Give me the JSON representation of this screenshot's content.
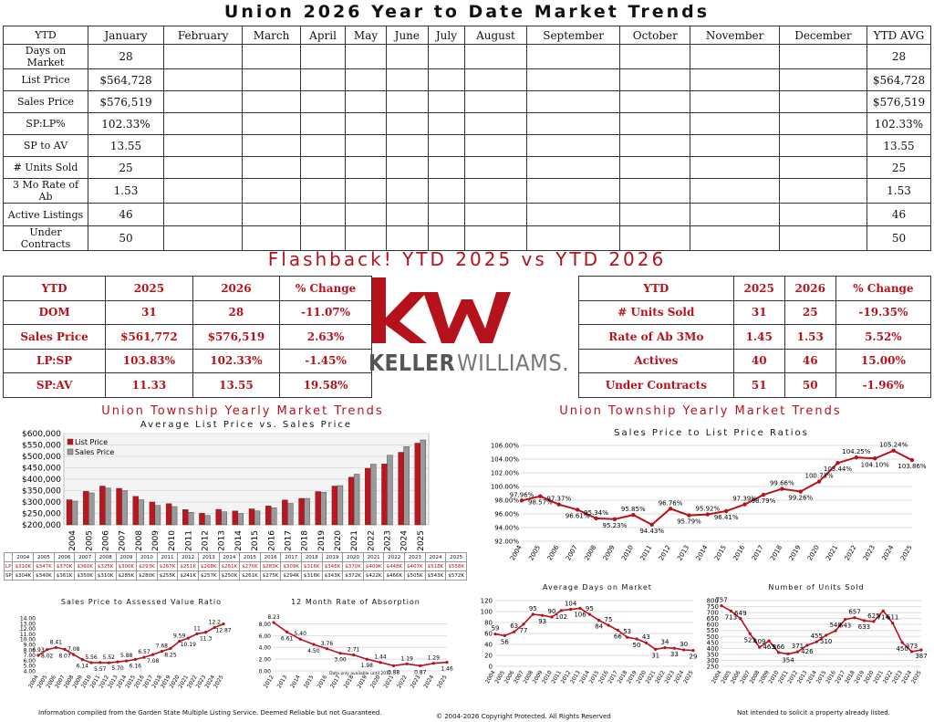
{
  "title": "Union 2026 Year to Date Market Trends",
  "ytd_table": {
    "headers": [
      "YTD",
      "January",
      "February",
      "March",
      "April",
      "May",
      "June",
      "July",
      "August",
      "September",
      "October",
      "November",
      "December",
      "YTD AVG"
    ],
    "rows": [
      {
        "label": "Days on Market",
        "january": "28",
        "ytd_avg": "28"
      },
      {
        "label": "List Price",
        "january": "$564,728",
        "ytd_avg": "$564,728"
      },
      {
        "label": "Sales Price",
        "january": "$576,519",
        "ytd_avg": "$576,519"
      },
      {
        "label": "SP:LP%",
        "january": "102.33%",
        "ytd_avg": "102.33%"
      },
      {
        "label": "SP to AV",
        "january": "13.55",
        "ytd_avg": "13.55"
      },
      {
        "label": "# Units Sold",
        "january": "25",
        "ytd_avg": "25"
      },
      {
        "label": "3 Mo Rate of Ab",
        "january": "1.53",
        "ytd_avg": "1.53"
      },
      {
        "label": "Active Listings",
        "january": "46",
        "ytd_avg": "46"
      },
      {
        "label": "Under Contracts",
        "january": "50",
        "ytd_avg": "50"
      }
    ]
  },
  "flashback_title": "Flashback!  YTD 2025 vs YTD 2026",
  "compare_left": {
    "headers": [
      "YTD",
      "2025",
      "2026",
      "% Change"
    ],
    "rows": [
      [
        "DOM",
        "31",
        "28",
        "-11.07%"
      ],
      [
        "Sales Price",
        "$561,772",
        "$576,519",
        "2.63%"
      ],
      [
        "LP:SP",
        "103.83%",
        "102.33%",
        "-1.45%"
      ],
      [
        "SP:AV",
        "11.33",
        "13.55",
        "19.58%"
      ]
    ]
  },
  "compare_right": {
    "headers": [
      "YTD",
      "2025",
      "2026",
      "% Change"
    ],
    "rows": [
      [
        "# Units Sold",
        "31",
        "25",
        "-19.35%"
      ],
      [
        "Rate of Ab 3Mo",
        "1.45",
        "1.53",
        "5.52%"
      ],
      [
        "Actives",
        "40",
        "46",
        "15.00%"
      ],
      [
        "Under Contracts",
        "51",
        "50",
        "-1.96%"
      ]
    ]
  },
  "logo": {
    "mark": "kw",
    "wordmark_bold": "KELLER",
    "wordmark_light": "WILLIAMS.",
    "color": "#b5121b"
  },
  "section_title_left": "Union Township Yearly Market Trends",
  "section_title_right": "Union Township Yearly Market Trends",
  "price_table": {
    "years": [
      "2004",
      "2005",
      "2006",
      "2007",
      "2008",
      "2009",
      "2010",
      "2011",
      "2012",
      "2013",
      "2014",
      "2015",
      "2016",
      "2017",
      "2018",
      "2019",
      "2020",
      "2021",
      "2022",
      "2023",
      "2024",
      "2025"
    ],
    "lp_label": "LP",
    "sp_label": "SP",
    "lp": [
      "$310K",
      "$347K",
      "$370K",
      "$360K",
      "$325K",
      "$300K",
      "$293K",
      "$267K",
      "$251K",
      "$268K",
      "$261K",
      "$270K",
      "$283K",
      "$309K",
      "$316K",
      "$346K",
      "$370K",
      "$409K",
      "$448K",
      "$467K",
      "$518K",
      "$558K"
    ],
    "sp": [
      "$304K",
      "$340K",
      "$361K",
      "$350K",
      "$310K",
      "$285K",
      "$280K",
      "$255K",
      "$241K",
      "$257K",
      "$250K",
      "$261K",
      "$275K",
      "$294K",
      "$316K",
      "$343K",
      "$372K",
      "$422K",
      "$466K",
      "$505K",
      "$543K",
      "$572K"
    ]
  },
  "footer": {
    "left": "Information compiled from the Garden State Multiple Listing Service.  Deemed Reliable but not Guaranteed.",
    "center": "© 2004-2026 Copyright Protected.  All Rights Reserved",
    "right": "Not intended to solicit a property already listed."
  },
  "chart_data": [
    {
      "id": "avg_price",
      "type": "bar",
      "title": "Average List Price vs. Sales Price",
      "categories": [
        "2004",
        "2005",
        "2006",
        "2007",
        "2008",
        "2009",
        "2010",
        "2011",
        "2012",
        "2013",
        "2014",
        "2015",
        "2016",
        "2017",
        "2018",
        "2019",
        "2020",
        "2021",
        "2022",
        "2023",
        "2024",
        "2025"
      ],
      "series": [
        {
          "name": "List Price",
          "color": "#c0141c",
          "values": [
            310000,
            347000,
            370000,
            360000,
            325000,
            300000,
            293000,
            267000,
            251000,
            268000,
            261000,
            270000,
            283000,
            309000,
            316000,
            346000,
            370000,
            409000,
            448000,
            467000,
            518000,
            558000
          ]
        },
        {
          "name": "Sales Price",
          "color": "#9a9a9a",
          "values": [
            304000,
            340000,
            361000,
            350000,
            310000,
            285000,
            280000,
            255000,
            241000,
            257000,
            250000,
            261000,
            275000,
            294000,
            316000,
            343000,
            372000,
            422000,
            466000,
            505000,
            543000,
            572000
          ]
        }
      ],
      "yticks": [
        "$200,000",
        "$250,000",
        "$300,000",
        "$350,000",
        "$400,000",
        "$450,000",
        "$500,000",
        "$550,000",
        "$600,000"
      ],
      "ylim": [
        200000,
        600000
      ],
      "legend": "top-left"
    },
    {
      "id": "sp_lp",
      "type": "line",
      "title": "Sales Price to List Price Ratios",
      "x": [
        "2004",
        "2005",
        "2006",
        "2007",
        "2008",
        "2009",
        "2010",
        "2011",
        "2012",
        "2013",
        "2014",
        "2015",
        "2016",
        "2017",
        "2018",
        "2019",
        "2020",
        "2021",
        "2022",
        "2023",
        "2024",
        "2025"
      ],
      "values": [
        97.96,
        98.57,
        97.37,
        96.61,
        95.34,
        95.23,
        95.85,
        94.43,
        96.76,
        95.79,
        95.92,
        96.41,
        97.39,
        98.79,
        99.66,
        99.26,
        100.73,
        103.44,
        104.25,
        104.1,
        105.24,
        103.86
      ],
      "labels": [
        "97.96%",
        "98.57%",
        "97.37%",
        "96.61%",
        "95.34%",
        "95.23%",
        "95.85%",
        "94.43%",
        "96.76%",
        "95.79%",
        "95.92%",
        "96.41%",
        "97.39%",
        "98.79%",
        "99.66%",
        "99.26%",
        "100.73%",
        "103.44%",
        "104.25%",
        "104.10%",
        "105.24%",
        "103.86%"
      ],
      "yticks": [
        "92.00%",
        "94.00%",
        "96.00%",
        "98.00%",
        "100.00%",
        "102.00%",
        "104.00%",
        "106.00%"
      ],
      "ylim": [
        92,
        106
      ],
      "color": "#b5121b"
    },
    {
      "id": "sp_av",
      "type": "line",
      "title": "Sales Price to Assessed Value Ratio",
      "x": [
        "2004",
        "2005",
        "2006",
        "2007",
        "2008",
        "2009",
        "2010",
        "2011",
        "2012",
        "2013",
        "2014",
        "2015",
        "2016",
        "2017",
        "2018",
        "2019",
        "2020",
        "2021",
        "2022",
        "2023",
        "2024",
        "2025"
      ],
      "values": [
        6.93,
        8.02,
        8.41,
        8.07,
        7.08,
        6.14,
        5.56,
        5.57,
        5.52,
        5.7,
        5.88,
        6.16,
        6.57,
        7.08,
        7.68,
        8.25,
        9.59,
        10.19,
        11.0,
        11.3,
        12.2,
        12.87
      ],
      "labels": [
        "6.93",
        "8.02",
        "8.41",
        "8.07",
        "7.08",
        "6.14",
        "5.56",
        "5.57",
        "5.52",
        "5.70",
        "5.88",
        "6.16",
        "6.57",
        "7.08",
        "7.68",
        "8.25",
        "9.59",
        "10.19",
        "11",
        "11.3",
        "12.2",
        "12.87"
      ],
      "yticks": [
        "4.00",
        "5.00",
        "6.00",
        "7.00",
        "8.00",
        "9.00",
        "10.00",
        "11.00",
        "12.00",
        "13.00",
        "14.00"
      ],
      "ylim": [
        4,
        14
      ],
      "color": "#b5121b"
    },
    {
      "id": "absorption",
      "type": "line",
      "title": "12 Month Rate of Absorption",
      "note": "Data only available until 2012",
      "x": [
        "2012",
        "2013",
        "2014",
        "2015",
        "2016",
        "2017",
        "2018",
        "2019",
        "2020",
        "2021",
        "2022",
        "2023",
        "2024",
        "2025"
      ],
      "values": [
        8.23,
        6.61,
        5.4,
        4.5,
        3.76,
        3.0,
        2.71,
        1.98,
        1.44,
        0.88,
        1.19,
        0.87,
        1.29,
        1.46
      ],
      "labels": [
        "8.23",
        "6.61",
        "5.40",
        "4.50",
        "3.76",
        "3.00",
        "2.71",
        "1.98",
        "1.44",
        "0.88",
        "1.19",
        "0.87",
        "1.29",
        "1.46"
      ],
      "yticks": [
        "0.00",
        "2.00",
        "4.00",
        "6.00",
        "8.00"
      ],
      "ylim": [
        0,
        9
      ],
      "color": "#b5121b"
    },
    {
      "id": "days_on_market",
      "type": "line",
      "title": "Average Days on Market",
      "x": [
        "2004",
        "2005",
        "2006",
        "2007",
        "2008",
        "2009",
        "2010",
        "2011",
        "2012",
        "2013",
        "2014",
        "2015",
        "2016",
        "2017",
        "2018",
        "2019",
        "2020",
        "2021",
        "2022",
        "2023",
        "2024",
        "2025"
      ],
      "values": [
        59,
        56,
        63,
        77,
        95,
        93,
        90,
        102,
        104,
        106,
        95,
        84,
        75,
        66,
        53,
        50,
        43,
        31,
        34,
        33,
        30,
        29
      ],
      "labels": [
        "59",
        "56",
        "63",
        "77",
        "95",
        "93",
        "90",
        "102",
        "104",
        "106",
        "95",
        "84",
        "75",
        "66",
        "53",
        "50",
        "43",
        "31",
        "34",
        "33",
        "30",
        "29"
      ],
      "yticks": [
        "0",
        "20",
        "40",
        "60",
        "80",
        "100",
        "120"
      ],
      "ylim": [
        0,
        120
      ],
      "color": "#b5121b"
    },
    {
      "id": "units_sold",
      "type": "line",
      "title": "Number of Units Sold",
      "x": [
        "2004",
        "2005",
        "2006",
        "2007",
        "2008",
        "2009",
        "2010",
        "2011",
        "2012",
        "2013",
        "2014",
        "2015",
        "2016",
        "2017",
        "2018",
        "2019",
        "2020",
        "2021",
        "2022",
        "2023",
        "2024",
        "2025"
      ],
      "values": [
        757,
        713,
        649,
        523,
        409,
        463,
        366,
        354,
        371,
        426,
        455,
        510,
        548,
        643,
        657,
        633,
        625,
        714,
        611,
        450,
        373,
        387
      ],
      "labels": [
        "757",
        "713",
        "649",
        "523",
        "409",
        "463",
        "366",
        "354",
        "371",
        "426",
        "455",
        "510",
        "548",
        "643",
        "657",
        "633",
        "625",
        "714",
        "611",
        "450",
        "373",
        "387"
      ],
      "yticks": [
        "250",
        "300",
        "350",
        "400",
        "450",
        "500",
        "550",
        "600",
        "650",
        "700",
        "750",
        "800"
      ],
      "ylim": [
        250,
        800
      ],
      "color": "#b5121b"
    }
  ]
}
